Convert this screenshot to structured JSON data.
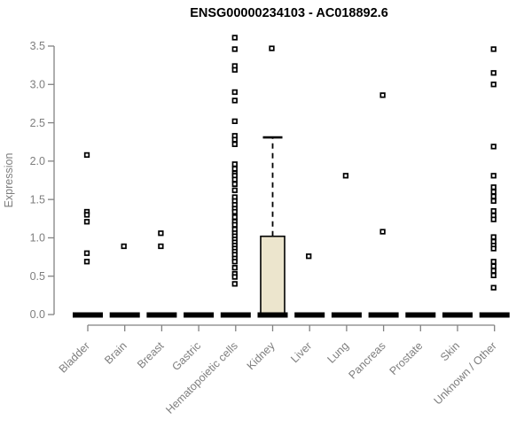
{
  "window": {
    "title": "ENSG00000234103 - AC018892.6"
  },
  "chart_data": {
    "type": "boxplot",
    "title": "ENSG00000234103 - AC018892.6",
    "xlabel": "",
    "ylabel": "Expression",
    "ylim": [
      0,
      3.5
    ],
    "yticks": [
      0.0,
      0.5,
      1.0,
      1.5,
      2.0,
      2.5,
      3.0,
      3.5
    ],
    "grid": false,
    "legend": "none",
    "categories": [
      "Bladder",
      "Brain",
      "Breast",
      "Gastric",
      "Hematopoietic cells",
      "Kidney",
      "Liver",
      "Lung",
      "Pancreas",
      "Prostate",
      "Skin",
      "Unknown / Other"
    ],
    "series": [
      {
        "category": "Bladder",
        "median": 0,
        "points": [
          2.08,
          1.34,
          1.3,
          1.21,
          0.8,
          0.69
        ]
      },
      {
        "category": "Brain",
        "median": 0,
        "points": [
          0.89
        ]
      },
      {
        "category": "Breast",
        "median": 0,
        "points": [
          1.06,
          0.89
        ]
      },
      {
        "category": "Gastric",
        "median": 0,
        "points": []
      },
      {
        "category": "Hematopoietic cells",
        "median": 0,
        "points": [
          3.61,
          3.46,
          3.24,
          3.19,
          2.9,
          2.79,
          2.52,
          2.33,
          2.28,
          2.22,
          1.96,
          1.9,
          1.84,
          1.81,
          1.76,
          1.7,
          1.62,
          1.53,
          1.48,
          1.43,
          1.38,
          1.34,
          1.27,
          1.21,
          1.17,
          1.11,
          1.06,
          1.02,
          0.98,
          0.94,
          0.9,
          0.86,
          0.82,
          0.78,
          0.73,
          0.69,
          0.61,
          0.53,
          0.49,
          0.4
        ]
      },
      {
        "category": "Kidney",
        "median": 0,
        "q1": 0,
        "q3": 1.02,
        "whisker_high": 2.31,
        "points": [
          3.47
        ]
      },
      {
        "category": "Liver",
        "median": 0,
        "points": [
          0.76
        ]
      },
      {
        "category": "Lung",
        "median": 0,
        "points": [
          1.81
        ]
      },
      {
        "category": "Pancreas",
        "median": 0,
        "points": [
          2.86,
          1.08
        ]
      },
      {
        "category": "Prostate",
        "median": 0,
        "points": []
      },
      {
        "category": "Skin",
        "median": 0,
        "points": []
      },
      {
        "category": "Unknown / Other",
        "median": 0,
        "points": [
          3.46,
          3.15,
          3.0,
          2.19,
          1.81,
          1.66,
          1.6,
          1.54,
          1.48,
          1.35,
          1.29,
          1.24,
          1.01,
          0.95,
          0.9,
          0.86,
          0.69,
          0.63,
          0.57,
          0.51,
          0.35
        ]
      }
    ],
    "colors": {
      "axis": "#828282",
      "tick_text": "#7e7e7e",
      "points": "#000000",
      "median_bar": "#000000",
      "box_fill": "#ece5cd",
      "box_border": "#000000",
      "title": "#000000",
      "background": "#ffffff"
    }
  }
}
